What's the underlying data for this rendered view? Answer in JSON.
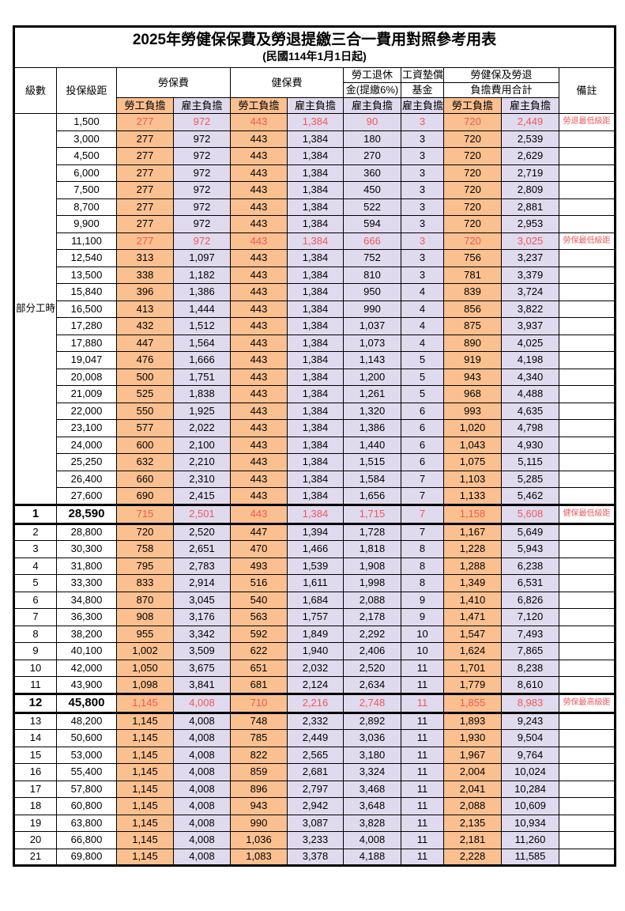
{
  "title": {
    "main": "2025年勞健保保費及勞退提繳三合一費用對照參考用表",
    "sub": "(民國114年1月1日起)"
  },
  "header": {
    "level": "級數",
    "bracket": "投保級距",
    "labor": "勞保費",
    "health": "健保費",
    "pension1": "勞工退休",
    "pension2": "金(提繳6%)",
    "fund1": "工資墊償",
    "fund2": "基金",
    "total1": "勞健保及勞退",
    "total2": "負擔費用合計",
    "remark": "備註",
    "employee": "勞工負擔",
    "employer": "雇主負擔"
  },
  "part_time_label": "部分工時",
  "colors": {
    "employee_bg": "#FAC090",
    "employer_bg": "#E0DAEE",
    "highlight_text": "#F25858"
  },
  "remarks": {
    "pension_min": "勞退最低級距",
    "labor_min": "勞保最低級距",
    "health_min": "健保最低級距",
    "labor_max": "勞保最高級距"
  },
  "rows": [
    {
      "l": "部分工時",
      "s": 23,
      "b": "1,500",
      "v": [
        "277",
        "972",
        "443",
        "1,384",
        "90",
        "3",
        "720",
        "2,449"
      ],
      "r": "勞退最低級距",
      "hl": true
    },
    {
      "l": null,
      "b": "3,000",
      "v": [
        "277",
        "972",
        "443",
        "1,384",
        "180",
        "3",
        "720",
        "2,539"
      ]
    },
    {
      "l": null,
      "b": "4,500",
      "v": [
        "277",
        "972",
        "443",
        "1,384",
        "270",
        "3",
        "720",
        "2,629"
      ]
    },
    {
      "l": null,
      "b": "6,000",
      "v": [
        "277",
        "972",
        "443",
        "1,384",
        "360",
        "3",
        "720",
        "2,719"
      ]
    },
    {
      "l": null,
      "b": "7,500",
      "v": [
        "277",
        "972",
        "443",
        "1,384",
        "450",
        "3",
        "720",
        "2,809"
      ]
    },
    {
      "l": null,
      "b": "8,700",
      "v": [
        "277",
        "972",
        "443",
        "1,384",
        "522",
        "3",
        "720",
        "2,881"
      ]
    },
    {
      "l": null,
      "b": "9,900",
      "v": [
        "277",
        "972",
        "443",
        "1,384",
        "594",
        "3",
        "720",
        "2,953"
      ]
    },
    {
      "l": null,
      "b": "11,100",
      "v": [
        "277",
        "972",
        "443",
        "1,384",
        "666",
        "3",
        "720",
        "3,025"
      ],
      "r": "勞保最低級距",
      "hl": true
    },
    {
      "l": null,
      "b": "12,540",
      "v": [
        "313",
        "1,097",
        "443",
        "1,384",
        "752",
        "3",
        "756",
        "3,237"
      ]
    },
    {
      "l": null,
      "b": "13,500",
      "v": [
        "338",
        "1,182",
        "443",
        "1,384",
        "810",
        "3",
        "781",
        "3,379"
      ]
    },
    {
      "l": null,
      "b": "15,840",
      "v": [
        "396",
        "1,386",
        "443",
        "1,384",
        "950",
        "4",
        "839",
        "3,724"
      ]
    },
    {
      "l": null,
      "b": "16,500",
      "v": [
        "413",
        "1,444",
        "443",
        "1,384",
        "990",
        "4",
        "856",
        "3,822"
      ]
    },
    {
      "l": null,
      "b": "17,280",
      "v": [
        "432",
        "1,512",
        "443",
        "1,384",
        "1,037",
        "4",
        "875",
        "3,937"
      ]
    },
    {
      "l": null,
      "b": "17,880",
      "v": [
        "447",
        "1,564",
        "443",
        "1,384",
        "1,073",
        "4",
        "890",
        "4,025"
      ]
    },
    {
      "l": null,
      "b": "19,047",
      "v": [
        "476",
        "1,666",
        "443",
        "1,384",
        "1,143",
        "5",
        "919",
        "4,198"
      ]
    },
    {
      "l": null,
      "b": "20,008",
      "v": [
        "500",
        "1,751",
        "443",
        "1,384",
        "1,200",
        "5",
        "943",
        "4,340"
      ]
    },
    {
      "l": null,
      "b": "21,009",
      "v": [
        "525",
        "1,838",
        "443",
        "1,384",
        "1,261",
        "5",
        "968",
        "4,488"
      ]
    },
    {
      "l": null,
      "b": "22,000",
      "v": [
        "550",
        "1,925",
        "443",
        "1,384",
        "1,320",
        "6",
        "993",
        "4,635"
      ]
    },
    {
      "l": null,
      "b": "23,100",
      "v": [
        "577",
        "2,022",
        "443",
        "1,384",
        "1,386",
        "6",
        "1,020",
        "4,798"
      ]
    },
    {
      "l": null,
      "b": "24,000",
      "v": [
        "600",
        "2,100",
        "443",
        "1,384",
        "1,440",
        "6",
        "1,043",
        "4,930"
      ]
    },
    {
      "l": null,
      "b": "25,250",
      "v": [
        "632",
        "2,210",
        "443",
        "1,384",
        "1,515",
        "6",
        "1,075",
        "5,115"
      ]
    },
    {
      "l": null,
      "b": "26,400",
      "v": [
        "660",
        "2,310",
        "443",
        "1,384",
        "1,584",
        "7",
        "1,103",
        "5,285"
      ]
    },
    {
      "l": null,
      "b": "27,600",
      "v": [
        "690",
        "2,415",
        "443",
        "1,384",
        "1,656",
        "7",
        "1,133",
        "5,462"
      ]
    },
    {
      "l": "1",
      "b": "28,590",
      "v": [
        "715",
        "2,501",
        "443",
        "1,384",
        "1,715",
        "7",
        "1,158",
        "5,608"
      ],
      "r": "健保最低級距",
      "hl": true,
      "em": true,
      "tk": true
    },
    {
      "l": "2",
      "b": "28,800",
      "v": [
        "720",
        "2,520",
        "447",
        "1,394",
        "1,728",
        "7",
        "1,167",
        "5,649"
      ]
    },
    {
      "l": "3",
      "b": "30,300",
      "v": [
        "758",
        "2,651",
        "470",
        "1,466",
        "1,818",
        "8",
        "1,228",
        "5,943"
      ]
    },
    {
      "l": "4",
      "b": "31,800",
      "v": [
        "795",
        "2,783",
        "493",
        "1,539",
        "1,908",
        "8",
        "1,288",
        "6,238"
      ]
    },
    {
      "l": "5",
      "b": "33,300",
      "v": [
        "833",
        "2,914",
        "516",
        "1,611",
        "1,998",
        "8",
        "1,349",
        "6,531"
      ]
    },
    {
      "l": "6",
      "b": "34,800",
      "v": [
        "870",
        "3,045",
        "540",
        "1,684",
        "2,088",
        "9",
        "1,410",
        "6,826"
      ]
    },
    {
      "l": "7",
      "b": "36,300",
      "v": [
        "908",
        "3,176",
        "563",
        "1,757",
        "2,178",
        "9",
        "1,471",
        "7,120"
      ]
    },
    {
      "l": "8",
      "b": "38,200",
      "v": [
        "955",
        "3,342",
        "592",
        "1,849",
        "2,292",
        "10",
        "1,547",
        "7,493"
      ]
    },
    {
      "l": "9",
      "b": "40,100",
      "v": [
        "1,002",
        "3,509",
        "622",
        "1,940",
        "2,406",
        "10",
        "1,624",
        "7,865"
      ]
    },
    {
      "l": "10",
      "b": "42,000",
      "v": [
        "1,050",
        "3,675",
        "651",
        "2,032",
        "2,520",
        "11",
        "1,701",
        "8,238"
      ]
    },
    {
      "l": "11",
      "b": "43,900",
      "v": [
        "1,098",
        "3,841",
        "681",
        "2,124",
        "2,634",
        "11",
        "1,779",
        "8,610"
      ]
    },
    {
      "l": "12",
      "b": "45,800",
      "v": [
        "1,145",
        "4,008",
        "710",
        "2,216",
        "2,748",
        "11",
        "1,855",
        "8,983"
      ],
      "r": "勞保最高級距",
      "hl": true,
      "em": true,
      "tk": true
    },
    {
      "l": "13",
      "b": "48,200",
      "v": [
        "1,145",
        "4,008",
        "748",
        "2,332",
        "2,892",
        "11",
        "1,893",
        "9,243"
      ]
    },
    {
      "l": "14",
      "b": "50,600",
      "v": [
        "1,145",
        "4,008",
        "785",
        "2,449",
        "3,036",
        "11",
        "1,930",
        "9,504"
      ]
    },
    {
      "l": "15",
      "b": "53,000",
      "v": [
        "1,145",
        "4,008",
        "822",
        "2,565",
        "3,180",
        "11",
        "1,967",
        "9,764"
      ]
    },
    {
      "l": "16",
      "b": "55,400",
      "v": [
        "1,145",
        "4,008",
        "859",
        "2,681",
        "3,324",
        "11",
        "2,004",
        "10,024"
      ]
    },
    {
      "l": "17",
      "b": "57,800",
      "v": [
        "1,145",
        "4,008",
        "896",
        "2,797",
        "3,468",
        "11",
        "2,041",
        "10,284"
      ]
    },
    {
      "l": "18",
      "b": "60,800",
      "v": [
        "1,145",
        "4,008",
        "943",
        "2,942",
        "3,648",
        "11",
        "2,088",
        "10,609"
      ]
    },
    {
      "l": "19",
      "b": "63,800",
      "v": [
        "1,145",
        "4,008",
        "990",
        "3,087",
        "3,828",
        "11",
        "2,135",
        "10,934"
      ]
    },
    {
      "l": "20",
      "b": "66,800",
      "v": [
        "1,145",
        "4,008",
        "1,036",
        "3,233",
        "4,008",
        "11",
        "2,181",
        "11,260"
      ]
    },
    {
      "l": "21",
      "b": "69,800",
      "v": [
        "1,145",
        "4,008",
        "1,083",
        "3,378",
        "4,188",
        "11",
        "2,228",
        "11,585"
      ]
    }
  ]
}
